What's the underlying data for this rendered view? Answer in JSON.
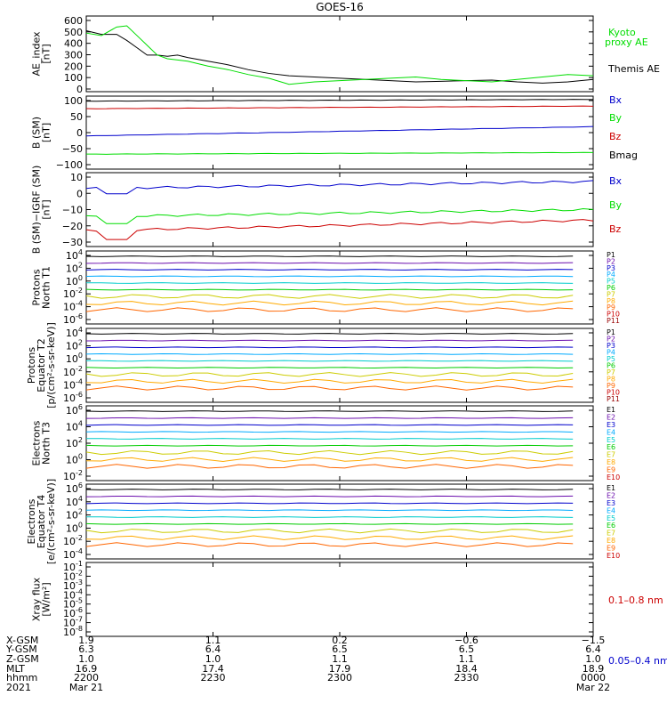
{
  "title": "GOES-16",
  "colors": {
    "black": "#000000",
    "green": "#00dd00",
    "blue": "#0000cc",
    "red": "#cc0000"
  },
  "chart_data": [
    {
      "type": "line",
      "ylabel": [
        "AE_index",
        "[nT]"
      ],
      "yticks": [
        "0",
        "100",
        "200",
        "300",
        "400",
        "500",
        "600"
      ],
      "ylim": [
        0,
        620
      ],
      "legend": [
        "Kyoto",
        "proxy AE",
        "Themis AE"
      ],
      "series": [
        {
          "name": "Themis AE",
          "color": "#000000",
          "x": [
            0,
            3,
            6,
            8,
            10,
            12,
            14,
            16,
            18,
            20,
            24,
            28,
            32,
            36,
            40,
            45,
            50,
            55,
            60,
            65,
            70,
            75,
            80,
            85,
            90,
            95,
            100
          ],
          "y": [
            500,
            470,
            470,
            420,
            360,
            300,
            300,
            290,
            300,
            280,
            250,
            220,
            180,
            150,
            130,
            120,
            110,
            100,
            90,
            80,
            85,
            90,
            95,
            80,
            70,
            80,
            100
          ]
        },
        {
          "name": "Kyoto proxy AE",
          "color": "#00dd00",
          "x": [
            0,
            3,
            6,
            8,
            10,
            12,
            14,
            16,
            18,
            20,
            24,
            28,
            32,
            36,
            40,
            45,
            50,
            55,
            60,
            65,
            70,
            75,
            80,
            85,
            90,
            95,
            100
          ],
          "y": [
            480,
            460,
            530,
            540,
            460,
            380,
            300,
            270,
            260,
            250,
            210,
            180,
            140,
            110,
            60,
            80,
            90,
            100,
            110,
            120,
            100,
            90,
            80,
            100,
            120,
            140,
            130
          ]
        }
      ]
    },
    {
      "type": "line",
      "ylabel": [
        "B (SM)",
        "[nT]"
      ],
      "yticks": [
        "100",
        "50",
        "0",
        "−50",
        "−100"
      ],
      "ylim": [
        -110,
        110
      ],
      "legend": [
        "Bx",
        "By",
        "Bz",
        "Bmag"
      ],
      "series": [
        {
          "name": "Bx",
          "color": "#0000cc",
          "y0": -10,
          "y1": 18
        },
        {
          "name": "By",
          "color": "#00dd00",
          "y0": -65,
          "y1": -60
        },
        {
          "name": "Bz",
          "color": "#cc0000",
          "y0": 72,
          "y1": 80
        },
        {
          "name": "Bmag",
          "color": "#000000",
          "y0": 95,
          "y1": 100
        }
      ]
    },
    {
      "type": "line",
      "ylabel": [
        "B (SM)−IGRF (SM)",
        "[nT]"
      ],
      "yticks": [
        "10",
        "0",
        "−10",
        "−20",
        "−30"
      ],
      "ylim": [
        -31,
        11
      ],
      "legend": [
        "Bx",
        "By",
        "Bz"
      ],
      "series": [
        {
          "name": "Bx",
          "color": "#0000cc",
          "y0": 2,
          "y1": 6,
          "dip": -1
        },
        {
          "name": "By",
          "color": "#00dd00",
          "y0": -14,
          "y1": -10,
          "dip": -18
        },
        {
          "name": "Bz",
          "color": "#cc0000",
          "y0": -22,
          "y1": -16,
          "dip": -27
        }
      ]
    },
    {
      "type": "line",
      "ylabel": [
        "Protons",
        "North T1"
      ],
      "yticks": [
        "10^4",
        "10^2",
        "10^0",
        "10^-2",
        "10^-4",
        "10^-6"
      ],
      "legend": [
        "P1",
        "P2",
        "P3",
        "P4",
        "P5",
        "P6",
        "P7",
        "P8",
        "P9",
        "P10",
        "P11"
      ]
    },
    {
      "type": "line",
      "ylabel": [
        "Protons",
        "Equator T2",
        "[p/(cm²-s-sr-keV)]"
      ],
      "yticks": [
        "10^4",
        "10^2",
        "10^0",
        "10^-2",
        "10^-4",
        "10^-6"
      ],
      "legend": [
        "P1",
        "P2",
        "P3",
        "P4",
        "P5",
        "P6",
        "P7",
        "P8",
        "P9",
        "P10",
        "P11"
      ]
    },
    {
      "type": "line",
      "ylabel": [
        "Electrons",
        "North T3"
      ],
      "yticks": [
        "10^6",
        "10^4",
        "10^2",
        "10^0",
        "10^-2"
      ],
      "legend": [
        "E1",
        "E2",
        "E3",
        "E4",
        "E5",
        "E6",
        "E7",
        "E8",
        "E9",
        "E10"
      ]
    },
    {
      "type": "line",
      "ylabel": [
        "Electrons",
        "Equator T4",
        "[e/(cm²-s-sr-keV)]"
      ],
      "yticks": [
        "10^6",
        "10^4",
        "10^2",
        "10^0",
        "10^-2",
        "10^-4"
      ],
      "legend": [
        "E1",
        "E2",
        "E3",
        "E4",
        "E5",
        "E6",
        "E7",
        "E8",
        "E9",
        "E10"
      ]
    },
    {
      "type": "line",
      "ylabel": [
        "Xray flux",
        "[W/m²]"
      ],
      "yticks": [
        "10^-1",
        "10^-2",
        "10^-3",
        "10^-4",
        "10^-5",
        "10^-6",
        "10^-7",
        "10^-8"
      ],
      "legend": [
        "0.1–0.8 nm",
        "0.05–0.4 nm"
      ]
    }
  ],
  "xaxis": {
    "row_labels": [
      "X-GSM",
      "Y-GSM",
      "Z-GSM",
      "MLT",
      "hhmm",
      "2021"
    ],
    "columns": [
      [
        "1.9",
        "6.3",
        "1.0",
        "16.9",
        "2200",
        "Mar 21"
      ],
      [
        "1.1",
        "6.4",
        "1.0",
        "17.4",
        "2230",
        ""
      ],
      [
        "0.2",
        "6.5",
        "1.1",
        "17.9",
        "2300",
        ""
      ],
      [
        "−0.6",
        "6.5",
        "1.1",
        "18.4",
        "2330",
        ""
      ],
      [
        "−1.5",
        "6.4",
        "1.0",
        "18.9",
        "0000",
        "Mar 22"
      ]
    ]
  },
  "level_colors": {
    "protons": [
      "#000000",
      "#6a0dad",
      "#0000cc",
      "#00aaff",
      "#00cccc",
      "#00cc00",
      "#cccc00",
      "#ffaa00",
      "#ff6600",
      "#cc0000",
      "#990000"
    ],
    "electrons": [
      "#000000",
      "#6a0dad",
      "#0000cc",
      "#00aaff",
      "#00cccc",
      "#00cc00",
      "#cccc00",
      "#ffaa00",
      "#ff6600",
      "#cc0000"
    ]
  }
}
